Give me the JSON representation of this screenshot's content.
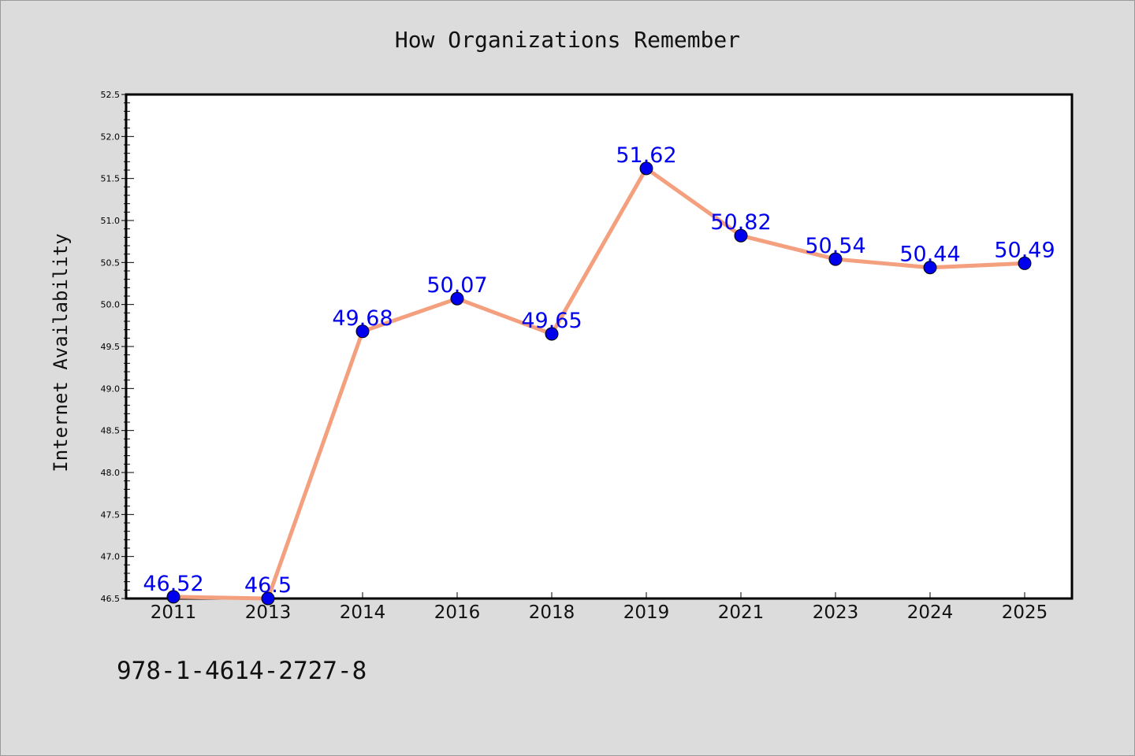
{
  "chart_data": {
    "type": "line",
    "title": "How Organizations Remember",
    "xlabel": "",
    "ylabel": "Internet Availability",
    "categories": [
      "2011",
      "2013",
      "2014",
      "2016",
      "2018",
      "2019",
      "2021",
      "2023",
      "2024",
      "2025"
    ],
    "series": [
      {
        "values": [
          46.52,
          46.5,
          49.68,
          50.07,
          49.65,
          51.62,
          50.82,
          50.54,
          50.44,
          50.49
        ],
        "labels": [
          "46.52",
          "46.5",
          "49.68",
          "50.07",
          "49.65",
          "51.62",
          "50.82",
          "50.54",
          "50.44",
          "50.49"
        ]
      }
    ],
    "ylim": [
      46.5,
      52.5
    ],
    "yticks": [
      "46.5",
      "47.0",
      "47.5",
      "48.0",
      "48.5",
      "49.0",
      "49.5",
      "50.0",
      "50.5",
      "51.0",
      "51.5",
      "52.0",
      "52.5"
    ],
    "grid": false,
    "legend": "none",
    "colors": {
      "line": "#f4a07e",
      "marker": "#0000ee",
      "label": "#0000ee",
      "background": "#dcdcdc",
      "plot": "#ffffff"
    }
  },
  "footer": {
    "isbn": "978-1-4614-2727-8"
  }
}
